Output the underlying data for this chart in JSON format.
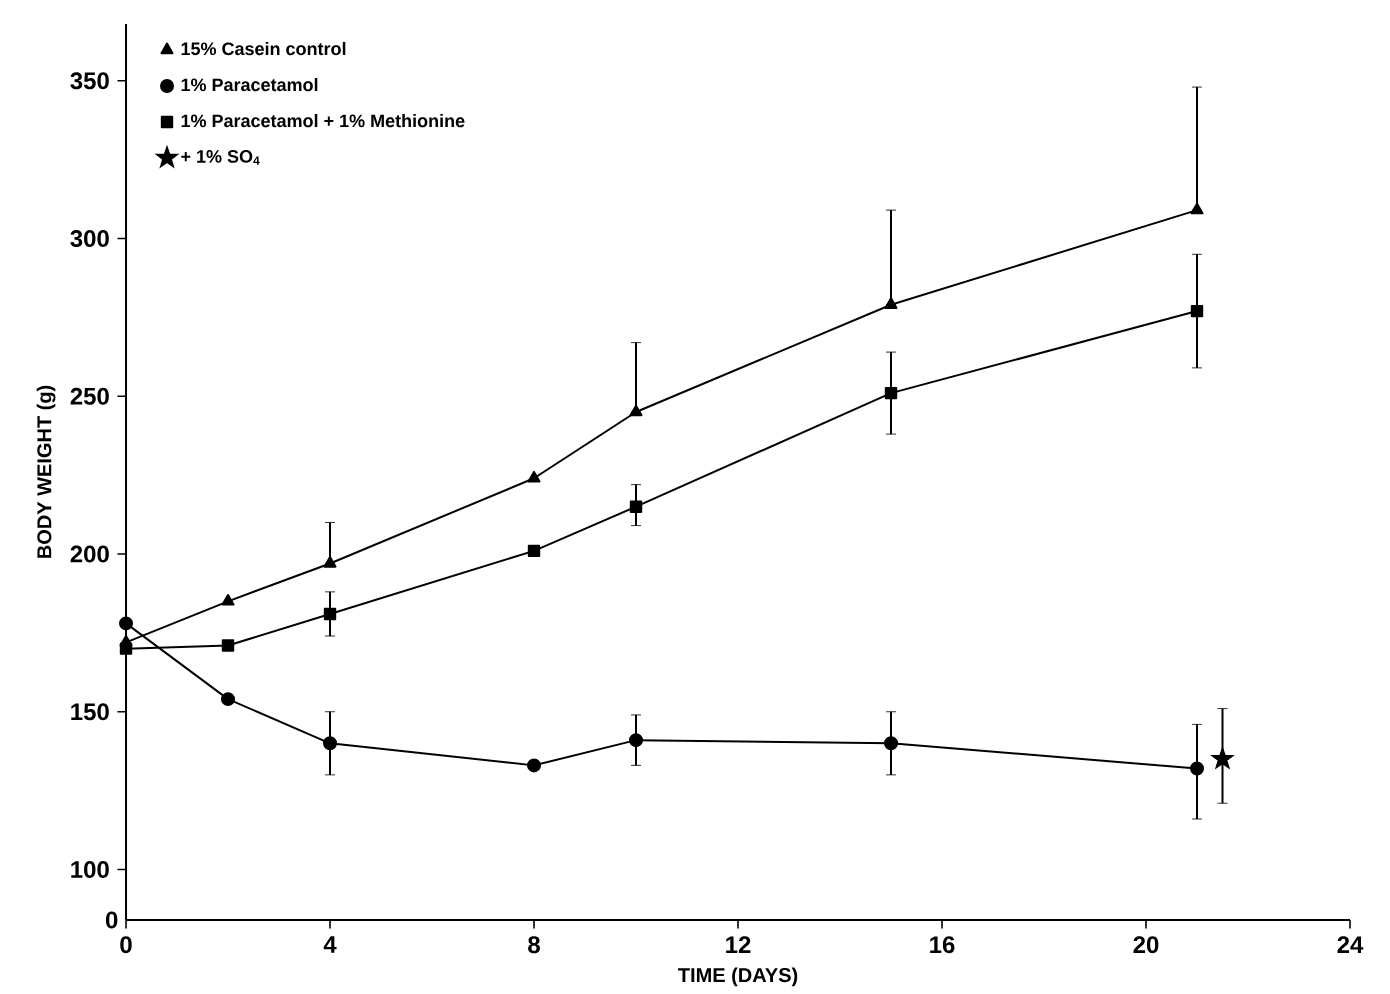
{
  "chart_data": {
    "type": "line",
    "xlabel": "TIME (DAYS)",
    "ylabel": "BODY WEIGHT (g)",
    "xlim": [
      0,
      24
    ],
    "xticks": [
      0,
      4,
      8,
      12,
      16,
      20,
      24
    ],
    "ylim": [
      84,
      368
    ],
    "yticks": [
      100,
      150,
      200,
      250,
      300,
      350
    ],
    "annotations": [
      "0"
    ],
    "grid": false,
    "legend": "top left",
    "series": [
      {
        "name": "15% Casein control",
        "color": "#000000",
        "marker": "triangle",
        "x": [
          0,
          2,
          4,
          8,
          10,
          15,
          21
        ],
        "values": [
          172,
          185,
          197,
          224,
          245,
          279,
          309
        ],
        "errors": [
          null,
          null,
          [
            197,
            210
          ],
          null,
          [
            245,
            267
          ],
          [
            279,
            309
          ],
          [
            309,
            348
          ]
        ]
      },
      {
        "name": "1% Paracetamol",
        "color": "#000000",
        "marker": "circle",
        "x": [
          0,
          2,
          4,
          8,
          10,
          15,
          21
        ],
        "values": [
          178,
          154,
          140,
          133,
          141,
          140,
          132
        ],
        "errors": [
          null,
          null,
          [
            130,
            150
          ],
          null,
          [
            133,
            149
          ],
          [
            130,
            150
          ],
          [
            116,
            146
          ]
        ]
      },
      {
        "name": "1% Paracetamol + 1% Methionine",
        "color": "#000000",
        "marker": "square",
        "x": [
          0,
          2,
          4,
          8,
          10,
          15,
          21
        ],
        "values": [
          170,
          171,
          181,
          201,
          215,
          251,
          277
        ],
        "errors": [
          null,
          null,
          [
            174,
            188
          ],
          null,
          [
            209,
            222
          ],
          [
            238,
            264
          ],
          [
            259,
            295
          ]
        ]
      },
      {
        "name": "+ 1% SO$_{4}$",
        "type": "scatter",
        "color": "#000000",
        "marker": "star",
        "x": [
          21.5
        ],
        "values": [
          135
        ],
        "errors": [
          [
            121,
            151
          ]
        ]
      }
    ]
  }
}
